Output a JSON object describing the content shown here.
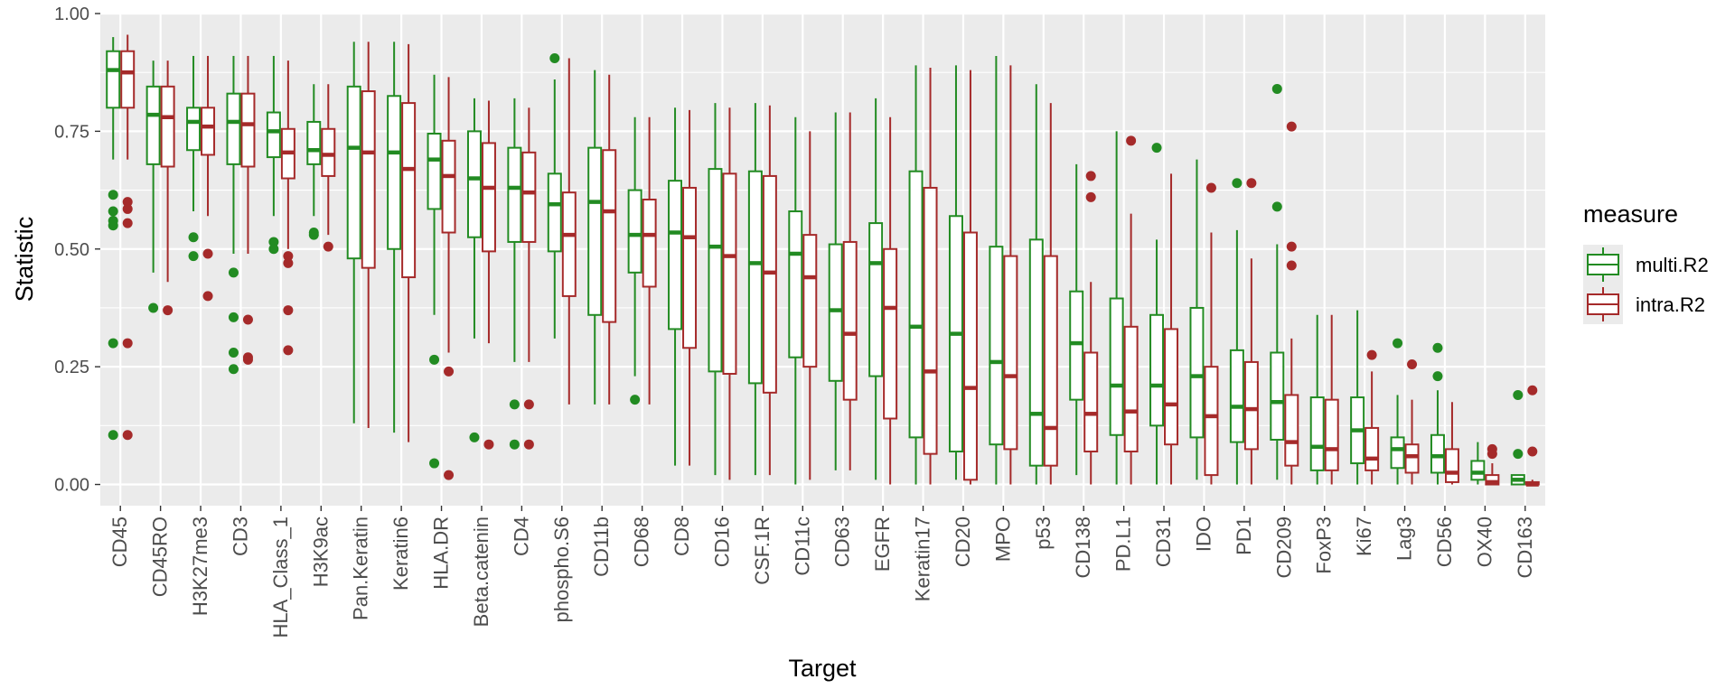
{
  "chart_data": {
    "type": "boxplot",
    "xlabel": "Target",
    "ylabel": "Statistic",
    "ylim": [
      -0.045,
      1.0
    ],
    "yticks": [
      "0.00",
      "0.25",
      "0.50",
      "0.75",
      "1.00"
    ],
    "grid": true,
    "legend": {
      "title": "measure",
      "position": "right"
    },
    "categories": [
      "CD45",
      "CD45RO",
      "H3K27me3",
      "CD3",
      "HLA_Class_1",
      "H3K9ac",
      "Pan.Keratin",
      "Keratin6",
      "HLA.DR",
      "Beta.catenin",
      "CD4",
      "phospho.S6",
      "CD11b",
      "CD68",
      "CD8",
      "CD16",
      "CSF.1R",
      "CD11c",
      "CD63",
      "EGFR",
      "Keratin17",
      "CD20",
      "MPO",
      "p53",
      "CD138",
      "PD.L1",
      "CD31",
      "IDO",
      "PD1",
      "CD209",
      "FoxP3",
      "Ki67",
      "Lag3",
      "CD56",
      "OX40",
      "CD163"
    ],
    "series": [
      {
        "name": "multi.R2",
        "color": "#228B22",
        "boxes": [
          [
            0.69,
            0.8,
            0.88,
            0.92,
            0.95
          ],
          [
            0.45,
            0.68,
            0.785,
            0.845,
            0.9
          ],
          [
            0.58,
            0.71,
            0.77,
            0.8,
            0.91
          ],
          [
            0.49,
            0.68,
            0.77,
            0.83,
            0.91
          ],
          [
            0.57,
            0.695,
            0.75,
            0.79,
            0.91
          ],
          [
            0.57,
            0.68,
            0.71,
            0.77,
            0.85
          ],
          [
            0.13,
            0.48,
            0.715,
            0.845,
            0.94
          ],
          [
            0.11,
            0.5,
            0.705,
            0.825,
            0.94
          ],
          [
            0.36,
            0.585,
            0.69,
            0.745,
            0.87
          ],
          [
            0.31,
            0.525,
            0.65,
            0.75,
            0.82
          ],
          [
            0.26,
            0.515,
            0.63,
            0.715,
            0.82
          ],
          [
            0.31,
            0.495,
            0.595,
            0.66,
            0.86
          ],
          [
            0.17,
            0.36,
            0.6,
            0.715,
            0.88
          ],
          [
            0.23,
            0.45,
            0.53,
            0.625,
            0.78
          ],
          [
            0.04,
            0.33,
            0.535,
            0.645,
            0.8
          ],
          [
            0.02,
            0.24,
            0.505,
            0.67,
            0.81
          ],
          [
            0.02,
            0.215,
            0.47,
            0.665,
            0.81
          ],
          [
            0.0,
            0.27,
            0.49,
            0.58,
            0.78
          ],
          [
            0.03,
            0.22,
            0.37,
            0.51,
            0.79
          ],
          [
            0.01,
            0.23,
            0.47,
            0.555,
            0.82
          ],
          [
            0.0,
            0.1,
            0.335,
            0.665,
            0.89
          ],
          [
            0.01,
            0.07,
            0.32,
            0.57,
            0.89
          ],
          [
            0.0,
            0.085,
            0.26,
            0.505,
            0.91
          ],
          [
            0.0,
            0.04,
            0.15,
            0.52,
            0.85
          ],
          [
            0.02,
            0.18,
            0.3,
            0.41,
            0.68
          ],
          [
            0.0,
            0.105,
            0.21,
            0.395,
            0.75
          ],
          [
            0.0,
            0.125,
            0.21,
            0.36,
            0.52
          ],
          [
            0.01,
            0.1,
            0.23,
            0.375,
            0.69
          ],
          [
            0.0,
            0.09,
            0.165,
            0.285,
            0.54
          ],
          [
            0.01,
            0.095,
            0.175,
            0.28,
            0.51
          ],
          [
            0.0,
            0.03,
            0.08,
            0.185,
            0.36
          ],
          [
            0.0,
            0.045,
            0.115,
            0.185,
            0.37
          ],
          [
            0.0,
            0.035,
            0.075,
            0.1,
            0.19
          ],
          [
            0.0,
            0.025,
            0.06,
            0.105,
            0.2
          ],
          [
            0.0,
            0.01,
            0.025,
            0.05,
            0.09
          ],
          [
            0.0,
            0.0,
            0.01,
            0.02,
            0.02
          ]
        ],
        "outliers": [
          [
            0.615,
            0.58,
            0.56,
            0.55,
            0.3,
            0.105
          ],
          [
            0.375
          ],
          [
            0.525,
            0.485
          ],
          [
            0.45,
            0.355,
            0.28,
            0.245
          ],
          [
            0.515,
            0.5
          ],
          [
            0.535,
            0.53
          ],
          [],
          [],
          [
            0.265,
            0.045
          ],
          [
            0.1
          ],
          [
            0.17,
            0.085
          ],
          [
            0.905
          ],
          [],
          [
            0.18
          ],
          [],
          [],
          [],
          [],
          [],
          [],
          [],
          [],
          [],
          [],
          [],
          [],
          [
            0.715
          ],
          [],
          [
            0.64
          ],
          [
            0.84,
            0.59
          ],
          [],
          [],
          [
            0.3
          ],
          [
            0.29,
            0.23
          ],
          [],
          [
            0.19,
            0.065
          ]
        ]
      },
      {
        "name": "intra.R2",
        "color": "#A52A2A",
        "boxes": [
          [
            0.69,
            0.8,
            0.875,
            0.92,
            0.955
          ],
          [
            0.43,
            0.675,
            0.78,
            0.845,
            0.9
          ],
          [
            0.57,
            0.7,
            0.76,
            0.8,
            0.91
          ],
          [
            0.49,
            0.675,
            0.765,
            0.83,
            0.91
          ],
          [
            0.5,
            0.65,
            0.705,
            0.755,
            0.9
          ],
          [
            0.53,
            0.655,
            0.7,
            0.755,
            0.85
          ],
          [
            0.12,
            0.46,
            0.705,
            0.835,
            0.94
          ],
          [
            0.09,
            0.44,
            0.67,
            0.81,
            0.935
          ],
          [
            0.28,
            0.535,
            0.655,
            0.73,
            0.865
          ],
          [
            0.3,
            0.495,
            0.63,
            0.725,
            0.815
          ],
          [
            0.26,
            0.515,
            0.62,
            0.705,
            0.8
          ],
          [
            0.17,
            0.4,
            0.53,
            0.62,
            0.905
          ],
          [
            0.17,
            0.345,
            0.58,
            0.71,
            0.87
          ],
          [
            0.17,
            0.42,
            0.53,
            0.605,
            0.78
          ],
          [
            0.04,
            0.29,
            0.525,
            0.63,
            0.795
          ],
          [
            0.01,
            0.235,
            0.485,
            0.66,
            0.8
          ],
          [
            0.02,
            0.195,
            0.45,
            0.655,
            0.805
          ],
          [
            0.01,
            0.25,
            0.44,
            0.53,
            0.75
          ],
          [
            0.03,
            0.18,
            0.32,
            0.515,
            0.79
          ],
          [
            0.0,
            0.14,
            0.375,
            0.5,
            0.78
          ],
          [
            0.0,
            0.065,
            0.24,
            0.63,
            0.885
          ],
          [
            0.0,
            0.01,
            0.205,
            0.535,
            0.88
          ],
          [
            0.0,
            0.075,
            0.23,
            0.485,
            0.89
          ],
          [
            0.0,
            0.04,
            0.12,
            0.485,
            0.81
          ],
          [
            0.0,
            0.07,
            0.15,
            0.28,
            0.43
          ],
          [
            0.0,
            0.07,
            0.155,
            0.335,
            0.575
          ],
          [
            0.0,
            0.085,
            0.17,
            0.33,
            0.66
          ],
          [
            0.0,
            0.02,
            0.145,
            0.25,
            0.535
          ],
          [
            0.0,
            0.075,
            0.16,
            0.26,
            0.48
          ],
          [
            0.0,
            0.04,
            0.09,
            0.19,
            0.31
          ],
          [
            0.0,
            0.03,
            0.075,
            0.18,
            0.36
          ],
          [
            0.0,
            0.03,
            0.055,
            0.12,
            0.24
          ],
          [
            0.0,
            0.025,
            0.06,
            0.085,
            0.18
          ],
          [
            0.0,
            0.005,
            0.025,
            0.075,
            0.175
          ],
          [
            0.0,
            0.0,
            0.005,
            0.02,
            0.045
          ],
          [
            0.0,
            0.0,
            0.0,
            0.005,
            0.01
          ]
        ],
        "outliers": [
          [
            0.6,
            0.585,
            0.555,
            0.3,
            0.105
          ],
          [
            0.37
          ],
          [
            0.49,
            0.4
          ],
          [
            0.35,
            0.27,
            0.265
          ],
          [
            0.485,
            0.47,
            0.37,
            0.285
          ],
          [
            0.505
          ],
          [],
          [],
          [
            0.24,
            0.02
          ],
          [
            0.085
          ],
          [
            0.17,
            0.085
          ],
          [],
          [],
          [],
          [],
          [],
          [],
          [],
          [],
          [],
          [],
          [],
          [],
          [],
          [
            0.655,
            0.61
          ],
          [
            0.73
          ],
          [],
          [
            0.63
          ],
          [
            0.64
          ],
          [
            0.76,
            0.505,
            0.465
          ],
          [],
          [
            0.275
          ],
          [
            0.255
          ],
          [],
          [
            0.075,
            0.065
          ],
          [
            0.2,
            0.07
          ]
        ]
      }
    ]
  }
}
